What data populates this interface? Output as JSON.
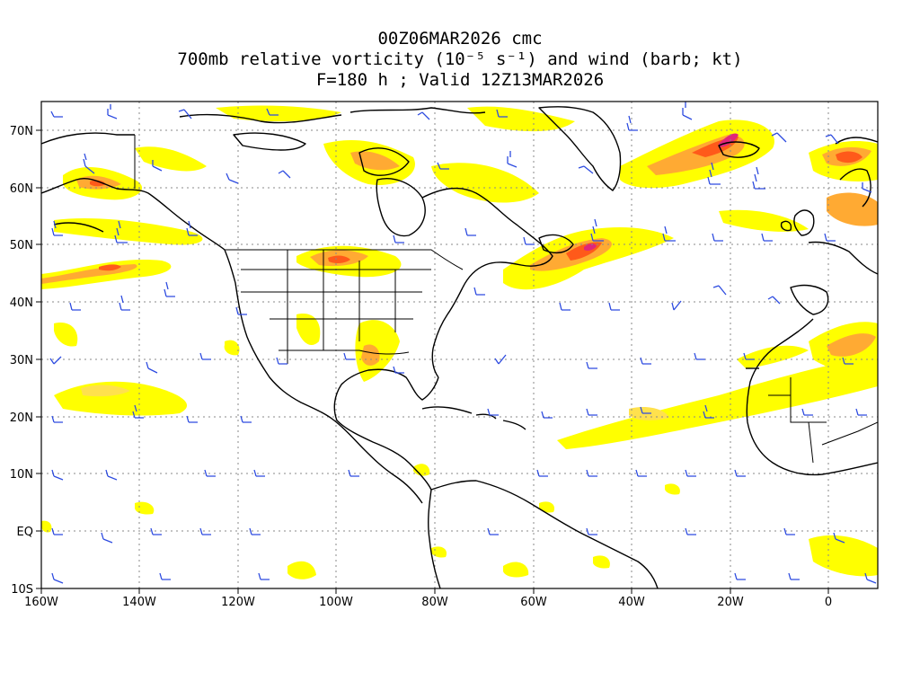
{
  "title": {
    "line1": "00Z06MAR2026 cmc",
    "line2": "700mb relative vorticity (10⁻⁵ s⁻¹) and wind (barb; kt)",
    "line3": "F=180 h ; Valid 12Z13MAR2026"
  },
  "axes": {
    "lon_labels": [
      "160W",
      "140W",
      "120W",
      "100W",
      "80W",
      "60W",
      "40W",
      "20W",
      "0"
    ],
    "lat_labels": [
      "70N",
      "60N",
      "50N",
      "40N",
      "30N",
      "20N",
      "10N",
      "EQ",
      "10S"
    ],
    "lon_range": [
      -160,
      10
    ],
    "lat_range": [
      -10,
      75
    ]
  },
  "colors": {
    "vort_weak": "#ffff00",
    "vort_light": "#ffe14d",
    "vort_mid": "#ffaa33",
    "vort_strong": "#ff5a1a",
    "vort_max": "#e0267a",
    "barb": "#2d4be0",
    "coast": "#000000",
    "grid": "#888888"
  }
}
